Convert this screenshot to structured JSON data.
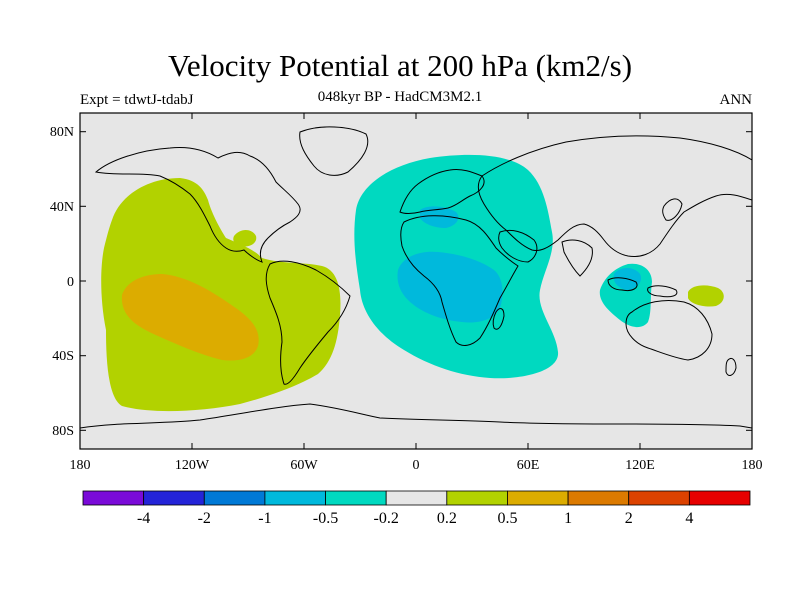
{
  "title": "Velocity Potential at 200 hPa (km2/s)",
  "subtitle_left": "Expt = tdwtJ-tdabJ",
  "subtitle_center": "048kyr BP - HadCM3M2.1",
  "subtitle_right": "ANN",
  "map": {
    "projection": "cylindrical-equidistant",
    "lon_range": [
      -180,
      180
    ],
    "lat_range": [
      -90,
      90
    ],
    "lat_ticks": [
      "80N",
      "40N",
      "0",
      "40S",
      "80S"
    ],
    "lon_ticks": [
      "180",
      "120W",
      "60W",
      "0",
      "60E",
      "120E",
      "180"
    ],
    "background_color": "#e6e6e6",
    "regions": [
      {
        "name": "eastern-pacific-positive",
        "level": "0.2 to 0.5",
        "color": "#b2d200"
      },
      {
        "name": "southeast-pacific-core",
        "level": "0.5 to 1",
        "color": "#dcac00"
      },
      {
        "name": "africa-indian-ocean-negative",
        "level": "-0.5 to -0.2",
        "color": "#00d9c0"
      },
      {
        "name": "africa-core",
        "level": "-1 to -0.5",
        "color": "#00b9dc"
      },
      {
        "name": "maritime-continent-negative",
        "level": "-0.5 to -0.2",
        "color": "#00d9c0"
      },
      {
        "name": "western-pacific-positive",
        "level": "0.2 to 0.5",
        "color": "#b2d200"
      }
    ]
  },
  "colorbar": {
    "colors": [
      "#7a0ad8",
      "#2424d8",
      "#0079d6",
      "#00b9dc",
      "#00d9c0",
      "#e6e6e6",
      "#b2d200",
      "#dcac00",
      "#dc7a00",
      "#dc4200",
      "#e60000"
    ],
    "labels": [
      "-4",
      "-2",
      "-1",
      "-0.5",
      "-0.2",
      "0.2",
      "0.5",
      "1",
      "2",
      "4"
    ]
  }
}
